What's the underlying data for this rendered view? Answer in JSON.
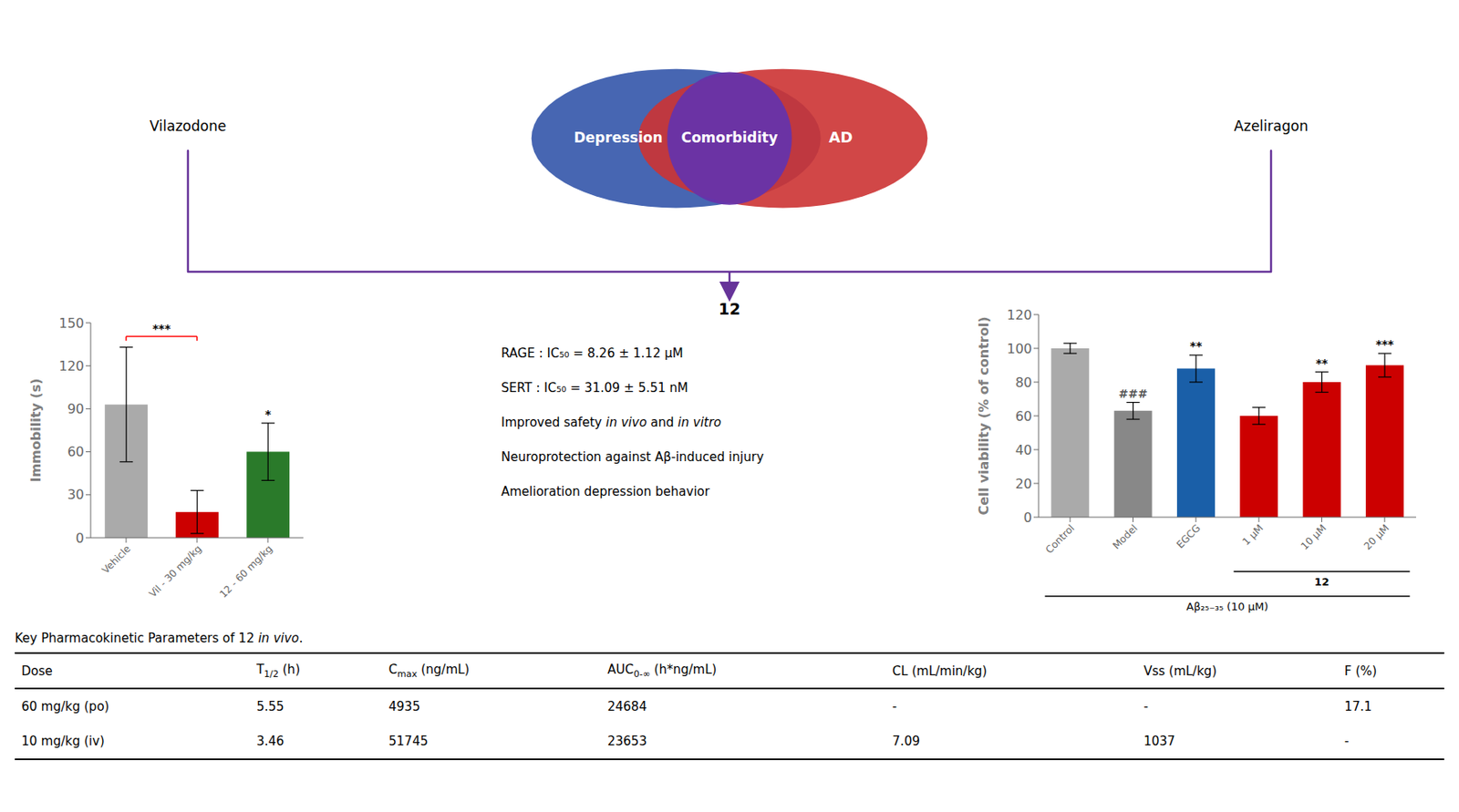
{
  "chart_data": [
    {
      "type": "bar",
      "categories": [
        "Vehicle",
        "Vil - 30 mg/kg",
        "12 - 60 mg/kg"
      ],
      "values": [
        93,
        18,
        60
      ],
      "errors": [
        40,
        15,
        20
      ],
      "colors": [
        "#aaaaaa",
        "#cc0000",
        "#2a7a2a"
      ],
      "ylabel": "Immobility (s)",
      "ylim": [
        0,
        150
      ],
      "yticks": [
        0,
        30,
        60,
        90,
        120,
        150
      ],
      "grid": false,
      "annotations": [
        {
          "text": "***",
          "categories": [
            "Vehicle",
            "Vil - 30 mg/kg"
          ],
          "color": "red"
        },
        {
          "text": "*",
          "categories": [
            "12 - 60 mg/kg"
          ]
        }
      ]
    },
    {
      "type": "bar",
      "categories": [
        "Control",
        "Model",
        "EGCG",
        "1 μM",
        "10 μM",
        "20 μM"
      ],
      "values": [
        100,
        63,
        88,
        60,
        80,
        90
      ],
      "errors": [
        3,
        5,
        8,
        5,
        6,
        7
      ],
      "colors": [
        "#aaaaaa",
        "#888888",
        "#1a5fa8",
        "#cc0000",
        "#cc0000",
        "#cc0000"
      ],
      "ylabel": "Cell viability (% of control)",
      "ylim": [
        0,
        120
      ],
      "yticks": [
        0,
        20,
        40,
        60,
        80,
        100,
        120
      ],
      "grid": false,
      "annotations": [
        {
          "text": "###",
          "categories": [
            "Model"
          ],
          "color": "#555555"
        },
        {
          "text": "**",
          "categories": [
            "EGCG"
          ]
        },
        {
          "text": "**",
          "categories": [
            "10 μM"
          ]
        },
        {
          "text": "***",
          "categories": [
            "20 μM"
          ]
        }
      ],
      "group_labels": [
        {
          "text": "12",
          "categories": [
            "1 μM",
            "10 μM",
            "20 μM"
          ]
        },
        {
          "text": "Aβ₂₅₋₃₅ (10 μM)",
          "categories": [
            "Control",
            "Model",
            "EGCG",
            "1 μM",
            "10 μM",
            "20 μM"
          ]
        }
      ]
    },
    {
      "type": "venn",
      "sets": [
        {
          "name": "Depression",
          "color": "#3355aa"
        },
        {
          "name": "AD",
          "color": "#cc3333"
        }
      ],
      "intersection": {
        "name": "Comorbidity",
        "color": "#6633aa"
      }
    },
    {
      "type": "info",
      "title": "12",
      "labels": [
        "Vilazodone",
        "Azeliragon"
      ],
      "color": "#663399",
      "lines": [
        [
          "RAGE : IC₅₀ = 8.26 ± 1.12 μM"
        ],
        [
          "SERT : IC₅₀ = 31.09 ± 5.51 nM"
        ],
        [
          "Improved safety ",
          "in vivo",
          " and ",
          "in vitro"
        ],
        [
          "Neuroprotection against Aβ-induced injury"
        ],
        [
          "Amelioration depression behavior"
        ]
      ]
    },
    {
      "type": "table",
      "title": [
        "Key Pharmacokinetic Parameters of 12 ",
        "in vivo",
        "."
      ],
      "columns": [
        [
          "Dose"
        ],
        [
          "T",
          "1/2",
          " (h)"
        ],
        [
          "C",
          "max",
          " (ng/mL)"
        ],
        [
          "AUC",
          "0-∞",
          " (h*ng/mL)"
        ],
        [
          "CL (mL/min/kg)"
        ],
        [
          "Vss (mL/kg)"
        ],
        [
          "F (%)"
        ]
      ],
      "rows": [
        [
          "60 mg/kg (po)",
          "5.55",
          "4935",
          "24684",
          "-",
          "-",
          "17.1"
        ],
        [
          "10 mg/kg (iv)",
          "3.46",
          "51745",
          "23653",
          "7.09",
          "1037",
          "-"
        ]
      ]
    }
  ]
}
